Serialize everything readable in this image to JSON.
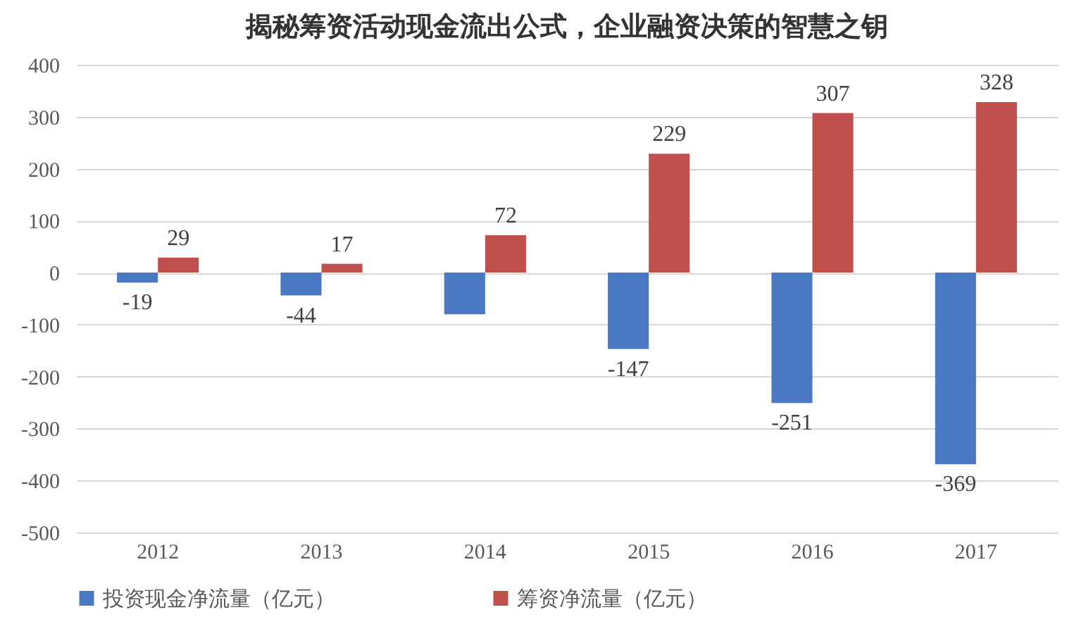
{
  "chart_data": {
    "type": "bar",
    "title": "揭秘筹资活动现金流出公式，企业融资决策的智慧之钥",
    "categories": [
      "2012",
      "2013",
      "2014",
      "2015",
      "2016",
      "2017"
    ],
    "series": [
      {
        "name": "投资现金净流量（亿元）",
        "color": "#4a78c2",
        "values": [
          -19,
          -44,
          -80,
          -147,
          -251,
          -369
        ],
        "value_labels": [
          "-19",
          "-44",
          null,
          "-147",
          "-251",
          "-369"
        ]
      },
      {
        "name": "筹资净流量（亿元）",
        "color": "#c0504d",
        "values": [
          29,
          17,
          72,
          229,
          307,
          328
        ],
        "value_labels": [
          "29",
          "17",
          "72",
          "229",
          "307",
          "328"
        ]
      }
    ],
    "ylim": [
      -500,
      400
    ],
    "yticks": [
      -500,
      -400,
      -300,
      -200,
      -100,
      0,
      100,
      200,
      300,
      400
    ],
    "grid": "y",
    "legend": "bottom"
  }
}
